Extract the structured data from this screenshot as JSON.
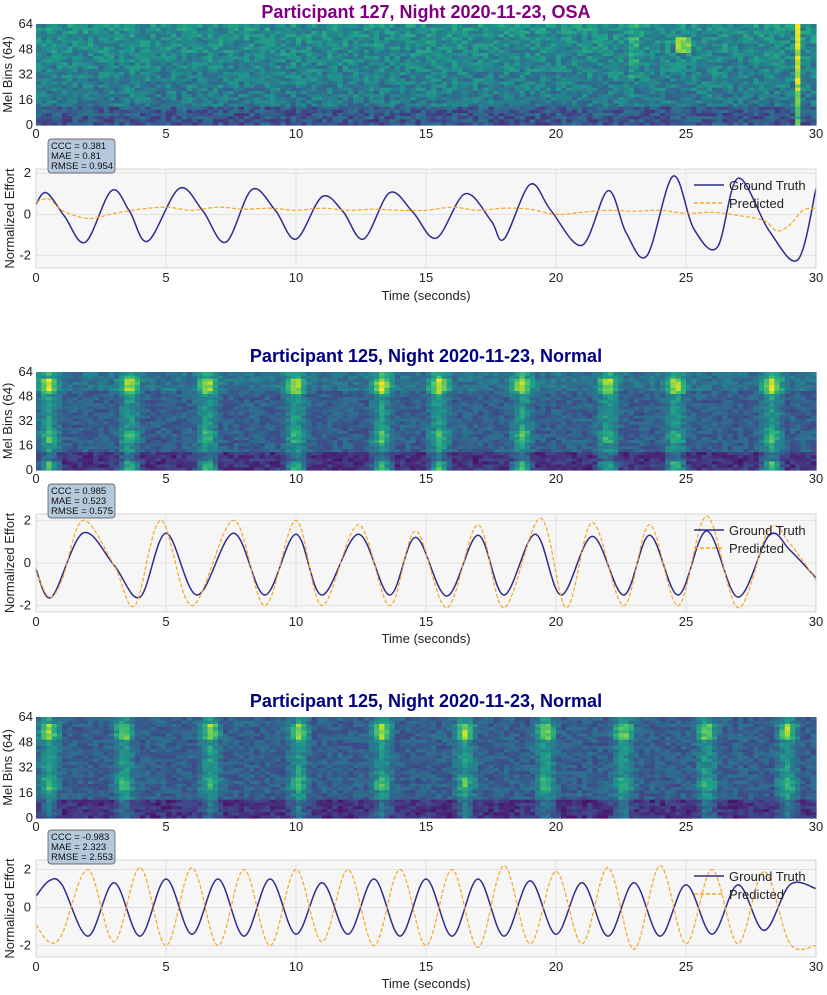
{
  "colors": {
    "title_osa": "#800080",
    "title_normal": "#000080",
    "ground_truth": "#2e2c8c",
    "predicted": "#f5a623",
    "stats_box_fill": "#b5c8dc",
    "plot_bg": "#f6f6f6",
    "grid": "#e2e2e2"
  },
  "chart_data": [
    {
      "type": "heatmap",
      "title": "Participant 127, Night 2020-11-23, OSA",
      "ylabel": "Mel Bins (64)",
      "xlim": [
        0,
        30
      ],
      "ylim": [
        0,
        64
      ],
      "xticks": [
        "0",
        "5",
        "10",
        "15",
        "20",
        "25",
        "30"
      ],
      "yticks": [
        "0",
        "16",
        "32",
        "48",
        "64"
      ],
      "colormap": "viridis",
      "pattern": "osa"
    },
    {
      "type": "line",
      "xlabel": "Time (seconds)",
      "ylabel": "Normalized Effort",
      "xlim": [
        0,
        30
      ],
      "ylim": [
        -2.6,
        2.2
      ],
      "xticks": [
        "0",
        "5",
        "10",
        "15",
        "20",
        "25",
        "30"
      ],
      "yticks": [
        "-2",
        "0",
        "2"
      ],
      "stats": [
        "CCC = 0.381",
        "MAE = 0.81",
        "RMSE = 0.954"
      ],
      "legend": "top-right",
      "series": [
        {
          "name": "Ground Truth",
          "style": "solid",
          "x": [
            0,
            0.4,
            1.1,
            1.9,
            2.9,
            3.6,
            4.3,
            5.5,
            6.4,
            7.3,
            8.3,
            9.2,
            10.0,
            11.0,
            11.8,
            12.6,
            13.6,
            14.5,
            15.4,
            16.5,
            17.5,
            18.0,
            19.0,
            19.8,
            21.0,
            22.0,
            22.7,
            23.5,
            24.5,
            25.3,
            26.2,
            27.0,
            28.2,
            29.3,
            30.0
          ],
          "y": [
            0.5,
            1.05,
            -0.1,
            -1.35,
            1.15,
            0.15,
            -1.3,
            1.25,
            0.2,
            -1.35,
            1.2,
            0.2,
            -1.2,
            0.85,
            0.15,
            -1.2,
            1.05,
            0.1,
            -1.15,
            1.0,
            -0.3,
            -1.2,
            1.45,
            0.2,
            -1.5,
            1.15,
            -0.9,
            -2.0,
            1.85,
            -0.7,
            -1.6,
            1.75,
            -0.8,
            -2.2,
            1.25
          ]
        },
        {
          "name": "Predicted",
          "style": "dashed",
          "x": [
            0,
            0.5,
            1.0,
            2.0,
            3.0,
            4.0,
            5.0,
            6.0,
            7.0,
            8.0,
            9.0,
            10.0,
            11.0,
            12.0,
            13.0,
            14.0,
            15.0,
            16.0,
            17.0,
            18.0,
            19.0,
            20.0,
            21.0,
            22.0,
            23.0,
            24.0,
            25.0,
            26.0,
            27.0,
            28.0,
            28.5,
            29.0,
            29.5,
            30.0
          ],
          "y": [
            0.6,
            0.75,
            0.2,
            -0.2,
            0.05,
            0.25,
            0.35,
            0.2,
            0.35,
            0.25,
            0.3,
            0.2,
            0.3,
            0.2,
            0.25,
            0.2,
            0.2,
            0.35,
            0.2,
            0.3,
            0.25,
            0.0,
            0.1,
            0.2,
            0.15,
            0.2,
            0.05,
            0.1,
            -0.05,
            -0.3,
            -0.8,
            -0.5,
            0.2,
            0.3
          ]
        }
      ]
    },
    {
      "type": "heatmap",
      "title": "Participant 125, Night 2020-11-23, Normal",
      "ylabel": "Mel Bins (64)",
      "xlim": [
        0,
        30
      ],
      "ylim": [
        0,
        64
      ],
      "xticks": [
        "0",
        "5",
        "10",
        "15",
        "20",
        "25",
        "30"
      ],
      "yticks": [
        "0",
        "16",
        "32",
        "48",
        "64"
      ],
      "colormap": "viridis",
      "pattern": "normal_a"
    },
    {
      "type": "line",
      "xlabel": "Time (seconds)",
      "ylabel": "Normalized Effort",
      "xlim": [
        0,
        30
      ],
      "ylim": [
        -2.3,
        2.3
      ],
      "xticks": [
        "0",
        "5",
        "10",
        "15",
        "20",
        "25",
        "30"
      ],
      "yticks": [
        "-2",
        "0",
        "2"
      ],
      "stats": [
        "CCC = 0.985",
        "MAE = 0.523",
        "RMSE = 0.575"
      ],
      "legend": "top-right",
      "series": [
        {
          "name": "Ground Truth",
          "style": "solid",
          "x": [
            0,
            0.6,
            1.8,
            3.0,
            4.0,
            5.0,
            6.2,
            7.6,
            8.8,
            10.0,
            11.0,
            12.4,
            13.6,
            14.6,
            15.8,
            17.0,
            18.0,
            19.2,
            20.2,
            21.4,
            22.6,
            23.6,
            24.7,
            25.8,
            27.0,
            28.2,
            29.0,
            30.0
          ],
          "y": [
            -0.3,
            -1.6,
            1.4,
            -0.1,
            -1.6,
            1.4,
            -1.5,
            1.4,
            -1.5,
            1.35,
            -1.5,
            1.35,
            -1.5,
            1.2,
            -1.55,
            1.3,
            -1.5,
            1.35,
            -1.5,
            1.25,
            -1.5,
            1.3,
            -1.5,
            1.5,
            -1.6,
            1.3,
            0.6,
            -0.7
          ]
        },
        {
          "name": "Predicted",
          "style": "dashed",
          "x": [
            0,
            0.5,
            1.0,
            1.8,
            3.0,
            3.8,
            4.8,
            6.0,
            7.6,
            8.8,
            10.0,
            11.0,
            12.4,
            13.6,
            14.6,
            15.8,
            17.0,
            18.0,
            19.4,
            20.4,
            21.4,
            22.6,
            23.6,
            24.7,
            25.8,
            27.0,
            28.2,
            29.0,
            30.0
          ],
          "y": [
            -0.4,
            -1.6,
            -0.8,
            2.0,
            -0.1,
            -2.0,
            2.0,
            -2.0,
            2.0,
            -2.0,
            2.0,
            -2.0,
            1.8,
            -2.0,
            1.5,
            -2.1,
            1.8,
            -2.1,
            2.1,
            -2.1,
            1.9,
            -2.0,
            1.8,
            -2.0,
            2.2,
            -2.1,
            1.6,
            0.9,
            -0.8
          ]
        }
      ]
    },
    {
      "type": "heatmap",
      "title": "Participant 125, Night 2020-11-23, Normal",
      "ylabel": "Mel Bins (64)",
      "xlim": [
        0,
        30
      ],
      "ylim": [
        0,
        64
      ],
      "xticks": [
        "0",
        "5",
        "10",
        "15",
        "20",
        "25",
        "30"
      ],
      "yticks": [
        "0",
        "16",
        "32",
        "48",
        "64"
      ],
      "colormap": "viridis",
      "pattern": "normal_b"
    },
    {
      "type": "line",
      "xlabel": "Time (seconds)",
      "ylabel": "Normalized Effort",
      "xlim": [
        0,
        30
      ],
      "ylim": [
        -2.6,
        2.5
      ],
      "xticks": [
        "0",
        "5",
        "10",
        "15",
        "20",
        "25",
        "30"
      ],
      "yticks": [
        "-2",
        "0",
        "2"
      ],
      "stats": [
        "CCC = -0.983",
        "MAE = 2.323",
        "RMSE = 2.553"
      ],
      "legend": "top-right",
      "series": [
        {
          "name": "Ground Truth",
          "style": "solid",
          "x": [
            0,
            0.5,
            1.0,
            2.0,
            3.0,
            4.0,
            5.0,
            6.0,
            7.0,
            8.0,
            9.0,
            10.0,
            11.0,
            12.0,
            13.0,
            14.0,
            15.0,
            16.0,
            17.0,
            18.0,
            19.0,
            20.0,
            21.0,
            22.0,
            23.0,
            24.0,
            25.0,
            26.0,
            27.0,
            28.0,
            29.0,
            30.0
          ],
          "y": [
            0.6,
            1.4,
            1.2,
            -1.5,
            1.3,
            -1.5,
            1.5,
            -1.4,
            1.5,
            -1.5,
            1.5,
            -1.4,
            1.3,
            -1.4,
            1.5,
            -1.5,
            1.5,
            -1.5,
            1.5,
            -1.5,
            1.4,
            -1.4,
            1.3,
            -1.5,
            1.3,
            -1.5,
            1.2,
            -1.4,
            1.2,
            -1.2,
            1.2,
            1.0
          ]
        },
        {
          "name": "Predicted",
          "style": "dashed",
          "x": [
            0,
            0.5,
            1.0,
            2.0,
            3.0,
            4.0,
            5.0,
            6.0,
            7.0,
            8.0,
            9.0,
            10.0,
            11.0,
            12.0,
            13.0,
            14.0,
            15.0,
            16.0,
            17.0,
            18.0,
            19.0,
            20.0,
            21.0,
            22.0,
            23.0,
            24.0,
            25.0,
            26.0,
            27.0,
            28.0,
            29.0,
            30.0
          ],
          "y": [
            -0.9,
            -1.8,
            -1.4,
            2.0,
            -1.8,
            2.1,
            -2.0,
            2.1,
            -2.0,
            2.0,
            -2.0,
            2.0,
            -1.8,
            2.0,
            -2.0,
            2.0,
            -2.0,
            2.0,
            -2.1,
            2.2,
            -1.9,
            1.9,
            -1.9,
            2.1,
            -2.2,
            2.2,
            -1.9,
            2.0,
            -1.9,
            1.9,
            -1.9,
            -2.0
          ]
        }
      ]
    }
  ]
}
